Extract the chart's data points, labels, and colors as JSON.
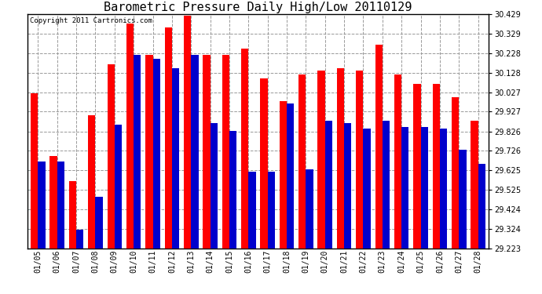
{
  "title": "Barometric Pressure Daily High/Low 20110129",
  "copyright": "Copyright 2011 Cartronics.com",
  "dates": [
    "01/05",
    "01/06",
    "01/07",
    "01/08",
    "01/09",
    "01/10",
    "01/11",
    "01/12",
    "01/13",
    "01/14",
    "01/15",
    "01/16",
    "01/17",
    "01/18",
    "01/19",
    "01/20",
    "01/21",
    "01/22",
    "01/23",
    "01/24",
    "01/25",
    "01/26",
    "01/27",
    "01/28"
  ],
  "highs": [
    30.02,
    29.7,
    29.57,
    29.91,
    30.17,
    30.38,
    30.22,
    30.36,
    30.42,
    30.22,
    30.22,
    30.25,
    30.1,
    29.98,
    30.12,
    30.14,
    30.15,
    30.14,
    30.27,
    30.12,
    30.07,
    30.07,
    30.0,
    29.88
  ],
  "lows": [
    29.67,
    29.67,
    29.32,
    29.49,
    29.86,
    30.22,
    30.2,
    30.15,
    30.22,
    29.87,
    29.83,
    29.62,
    29.62,
    29.97,
    29.63,
    29.88,
    29.87,
    29.84,
    29.88,
    29.85,
    29.85,
    29.84,
    29.73,
    29.66
  ],
  "high_color": "#ff0000",
  "low_color": "#0000cc",
  "background_color": "#ffffff",
  "plot_bg_color": "#ffffff",
  "grid_color": "#999999",
  "ymin": 29.223,
  "ymax": 30.429,
  "yticks": [
    29.223,
    29.324,
    29.424,
    29.525,
    29.625,
    29.726,
    29.826,
    29.927,
    30.027,
    30.128,
    30.228,
    30.329,
    30.429
  ],
  "title_fontsize": 11,
  "copyright_fontsize": 6.5,
  "tick_fontsize": 7,
  "bar_width": 0.38
}
